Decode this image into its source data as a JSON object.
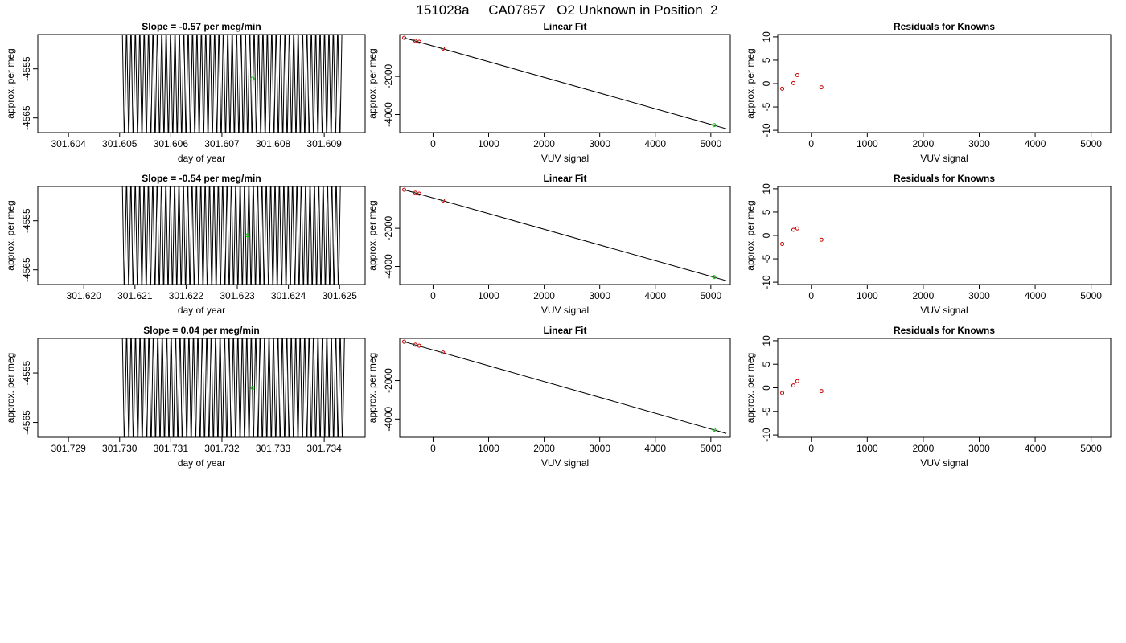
{
  "figure_title": "151028a     CA07857   O2 Unknown in Position  2",
  "colors": {
    "trace": "#000000",
    "unknown_point": "#00cc00",
    "known_point": "#cc0000",
    "axis": "#000000",
    "background": "#ffffff"
  },
  "chart_data": [
    {
      "type": "line",
      "panel": "row1-time",
      "title": "Slope =  -0.57  per meg/min",
      "xlabel": "day of year",
      "ylabel": "approx. per meg",
      "xlim": [
        301.6034,
        301.6098
      ],
      "ylim": [
        -4568,
        -4548
      ],
      "xticks": [
        "301.604",
        "301.605",
        "301.606",
        "301.607",
        "301.608",
        "301.609"
      ],
      "yticks": [
        "-4555",
        "-4565"
      ],
      "series": [
        {
          "oscillation_x_range": [
            301.60505,
            301.60935
          ],
          "oscillation_y_range": [
            -4568,
            -4548
          ],
          "cycles": 50
        }
      ],
      "highlight": {
        "x": 301.6076,
        "y": -4557
      }
    },
    {
      "type": "scatter",
      "panel": "row1-fit",
      "title": "Linear Fit",
      "xlabel": "VUV signal",
      "ylabel": "approx. per meg",
      "xlim": [
        -600,
        5350
      ],
      "ylim": [
        -4950,
        200
      ],
      "xticks": [
        "0",
        "1000",
        "2000",
        "3000",
        "4000",
        "5000"
      ],
      "yticks": [
        "-2000",
        "-4000"
      ],
      "known_points": [
        {
          "x": -520,
          "y": 25
        },
        {
          "x": -320,
          "y": -130
        },
        {
          "x": -250,
          "y": -180
        },
        {
          "x": 180,
          "y": -540
        }
      ],
      "unknown_point": {
        "x": 5060,
        "y": -4557
      },
      "fit_line": {
        "x": [
          -520,
          5280
        ],
        "y": [
          25,
          -4750
        ]
      }
    },
    {
      "type": "scatter",
      "panel": "row1-residuals",
      "title": "Residuals for Knowns",
      "xlabel": "VUV signal",
      "ylabel": "approx. per meg",
      "xlim": [
        -600,
        5350
      ],
      "ylim": [
        -10.5,
        10.5
      ],
      "xticks": [
        "0",
        "1000",
        "2000",
        "3000",
        "4000",
        "5000"
      ],
      "yticks": [
        "10",
        "5",
        "0",
        "-5",
        "-10"
      ],
      "points": [
        {
          "x": -520,
          "y": -1.1
        },
        {
          "x": -320,
          "y": 0.1
        },
        {
          "x": -250,
          "y": 1.8
        },
        {
          "x": 180,
          "y": -0.8
        }
      ]
    },
    {
      "type": "line",
      "panel": "row2-time",
      "title": "Slope =  -0.54  per meg/min",
      "xlabel": "day of year",
      "ylabel": "approx. per meg",
      "xlim": [
        301.6191,
        301.6255
      ],
      "ylim": [
        -4568,
        -4548
      ],
      "xticks": [
        "301.620",
        "301.621",
        "301.622",
        "301.623",
        "301.624",
        "301.625"
      ],
      "yticks": [
        "-4555",
        "-4565"
      ],
      "series": [
        {
          "oscillation_x_range": [
            301.62075,
            301.62502
          ],
          "oscillation_y_range": [
            -4568,
            -4548
          ],
          "cycles": 50
        }
      ],
      "highlight": {
        "x": 301.6232,
        "y": -4558
      }
    },
    {
      "type": "scatter",
      "panel": "row2-fit",
      "title": "Linear Fit",
      "xlabel": "VUV signal",
      "ylabel": "approx. per meg",
      "xlim": [
        -600,
        5350
      ],
      "ylim": [
        -4950,
        200
      ],
      "xticks": [
        "0",
        "1000",
        "2000",
        "3000",
        "4000",
        "5000"
      ],
      "yticks": [
        "-2000",
        "-4000"
      ],
      "known_points": [
        {
          "x": -520,
          "y": 25
        },
        {
          "x": -320,
          "y": -130
        },
        {
          "x": -250,
          "y": -180
        },
        {
          "x": 180,
          "y": -540
        }
      ],
      "unknown_point": {
        "x": 5060,
        "y": -4558
      },
      "fit_line": {
        "x": [
          -520,
          5280
        ],
        "y": [
          25,
          -4750
        ]
      }
    },
    {
      "type": "scatter",
      "panel": "row2-residuals",
      "title": "Residuals for Knowns",
      "xlabel": "VUV signal",
      "ylabel": "approx. per meg",
      "xlim": [
        -600,
        5350
      ],
      "ylim": [
        -10.5,
        10.5
      ],
      "xticks": [
        "0",
        "1000",
        "2000",
        "3000",
        "4000",
        "5000"
      ],
      "yticks": [
        "10",
        "5",
        "0",
        "-5",
        "-10"
      ],
      "points": [
        {
          "x": -520,
          "y": -1.8
        },
        {
          "x": -320,
          "y": 1.2
        },
        {
          "x": -250,
          "y": 1.5
        },
        {
          "x": 180,
          "y": -0.9
        }
      ]
    },
    {
      "type": "line",
      "panel": "row3-time",
      "title": "Slope =  0.04  per meg/min",
      "xlabel": "day of year",
      "ylabel": "approx. per meg",
      "xlim": [
        301.7284,
        301.7348
      ],
      "ylim": [
        -4568,
        -4548
      ],
      "xticks": [
        "301.729",
        "301.730",
        "301.731",
        "301.732",
        "301.733",
        "301.734"
      ],
      "yticks": [
        "-4555",
        "-4565"
      ],
      "series": [
        {
          "oscillation_x_range": [
            301.73005,
            301.7344
          ],
          "oscillation_y_range": [
            -4568,
            -4548
          ],
          "cycles": 50
        }
      ],
      "highlight": {
        "x": 301.7326,
        "y": -4558
      }
    },
    {
      "type": "scatter",
      "panel": "row3-fit",
      "title": "Linear Fit",
      "xlabel": "VUV signal",
      "ylabel": "approx. per meg",
      "xlim": [
        -600,
        5350
      ],
      "ylim": [
        -4950,
        200
      ],
      "xticks": [
        "0",
        "1000",
        "2000",
        "3000",
        "4000",
        "5000"
      ],
      "yticks": [
        "-2000",
        "-4000"
      ],
      "known_points": [
        {
          "x": -520,
          "y": 25
        },
        {
          "x": -320,
          "y": -130
        },
        {
          "x": -250,
          "y": -180
        },
        {
          "x": 180,
          "y": -540
        }
      ],
      "unknown_point": {
        "x": 5060,
        "y": -4558
      },
      "fit_line": {
        "x": [
          -520,
          5280
        ],
        "y": [
          25,
          -4750
        ]
      }
    },
    {
      "type": "scatter",
      "panel": "row3-residuals",
      "title": "Residuals for Knowns",
      "xlabel": "VUV signal",
      "ylabel": "approx. per meg",
      "xlim": [
        -600,
        5350
      ],
      "ylim": [
        -10.5,
        10.5
      ],
      "xticks": [
        "0",
        "1000",
        "2000",
        "3000",
        "4000",
        "5000"
      ],
      "yticks": [
        "10",
        "5",
        "0",
        "-5",
        "-10"
      ],
      "points": [
        {
          "x": -520,
          "y": -1.1
        },
        {
          "x": -320,
          "y": 0.5
        },
        {
          "x": -250,
          "y": 1.4
        },
        {
          "x": 180,
          "y": -0.7
        }
      ]
    }
  ]
}
